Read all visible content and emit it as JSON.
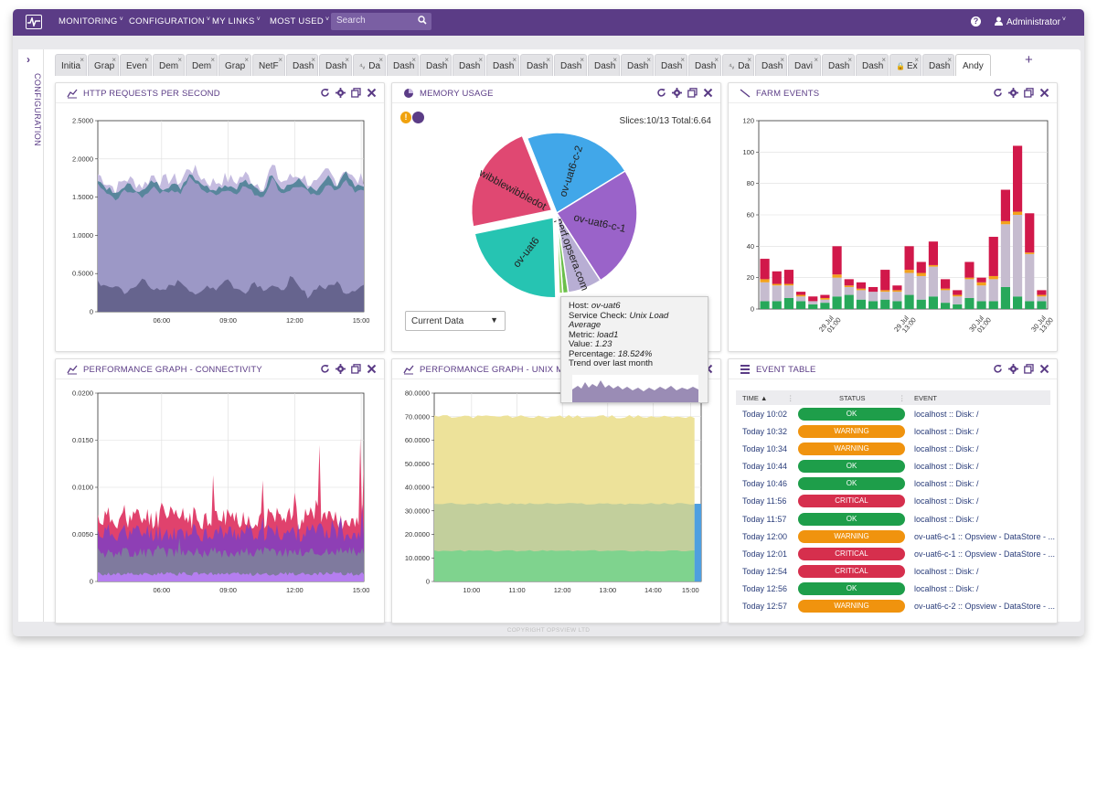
{
  "nav": {
    "items": [
      "MONITORING",
      "CONFIGURATION",
      "MY LINKS",
      "MOST USED"
    ],
    "search_placeholder": "Search",
    "user": "Administrator",
    "help": "?"
  },
  "sidebar": {
    "label": "CONFIGURATION"
  },
  "tabs": [
    "Initia",
    "Grap",
    "Even",
    "Dem",
    "Dem",
    "Grap",
    "NetF",
    "Dash",
    "Dash",
    "Da",
    "Dash",
    "Dash",
    "Dash",
    "Dash",
    "Dash",
    "Dash",
    "Dash",
    "Dash",
    "Dash",
    "Dash",
    "Da",
    "Dash",
    "Davi",
    "Dash",
    "Dash",
    "Ex",
    "Dash",
    "Andy"
  ],
  "panels": {
    "http": {
      "title": "HTTP REQUESTS PER SECOND"
    },
    "memory": {
      "title": "MEMORY USAGE",
      "summary": "Slices:10/13 Total:6.64",
      "dropdown": "Current Data"
    },
    "farm": {
      "title": "FARM EVENTS"
    },
    "conn": {
      "title": "PERFORMANCE GRAPH - CONNECTIVITY"
    },
    "unix": {
      "title": "PERFORMANCE GRAPH - UNIX MEI"
    },
    "events": {
      "title": "EVENT TABLE"
    }
  },
  "tooltip": {
    "host_label": "Host:",
    "host": "ov-uat6",
    "check_label": "Service Check:",
    "check": "Unix Load Average",
    "metric_label": "Metric:",
    "metric": "load1",
    "value_label": "Value:",
    "value": "1.23",
    "pct_label": "Percentage:",
    "pct": "18.524%",
    "trend": "Trend over last month"
  },
  "event_table": {
    "headers": [
      "TIME ▲",
      "STATUS",
      "EVENT"
    ],
    "rows": [
      {
        "time": "Today 10:02",
        "status": "OK",
        "event": "localhost :: Disk: /"
      },
      {
        "time": "Today 10:32",
        "status": "WARNING",
        "event": "localhost :: Disk: /"
      },
      {
        "time": "Today 10:34",
        "status": "WARNING",
        "event": "localhost :: Disk: /"
      },
      {
        "time": "Today 10:44",
        "status": "OK",
        "event": "localhost :: Disk: /"
      },
      {
        "time": "Today 10:46",
        "status": "OK",
        "event": "localhost :: Disk: /"
      },
      {
        "time": "Today 11:56",
        "status": "CRITICAL",
        "event": "localhost :: Disk: /"
      },
      {
        "time": "Today 11:57",
        "status": "OK",
        "event": "localhost :: Disk: /"
      },
      {
        "time": "Today 12:00",
        "status": "WARNING",
        "event": "ov-uat6-c-1 :: Opsview - DataStore - ..."
      },
      {
        "time": "Today 12:01",
        "status": "CRITICAL",
        "event": "ov-uat6-c-1 :: Opsview - DataStore - ..."
      },
      {
        "time": "Today 12:54",
        "status": "CRITICAL",
        "event": "localhost :: Disk: /"
      },
      {
        "time": "Today 12:56",
        "status": "OK",
        "event": "localhost :: Disk: /"
      },
      {
        "time": "Today 12:57",
        "status": "WARNING",
        "event": "ov-uat6-c-2 :: Opsview - DataStore - ..."
      }
    ]
  },
  "status_colors": {
    "OK": "#1e9e4a",
    "WARNING": "#f0930e",
    "CRITICAL": "#d62f4d"
  },
  "copyright": "COPYRIGHT OPSVIEW LTD",
  "chart_data": [
    {
      "name": "http",
      "type": "area",
      "ylim": [
        0,
        2.5
      ],
      "y_ticks": [
        "0",
        "0.5000",
        "1.0000",
        "1.5000",
        "2.0000",
        "2.5000"
      ],
      "x_ticks": [
        "06:00",
        "09:00",
        "12:00",
        "15:00"
      ],
      "series": [
        {
          "values": [
            1.8,
            1.7,
            1.6,
            1.75,
            1.7,
            1.65,
            1.8,
            1.7,
            1.75,
            1.7,
            1.9,
            1.8,
            1.7,
            1.7,
            1.75,
            1.7,
            1.8,
            1.7,
            1.65,
            1.9,
            1.7,
            1.75,
            1.8,
            1.7,
            1.65,
            1.85,
            1.7,
            1.9,
            1.7,
            1.75
          ]
        },
        {
          "values": [
            0.4,
            0.3,
            0.35,
            0.25,
            0.3,
            0.45,
            0.3,
            0.25,
            0.35,
            0.4,
            0.3,
            0.2,
            0.35,
            0.3,
            0.45,
            0.3,
            0.25,
            0.4,
            0.3,
            0.35,
            0.25,
            0.45,
            0.3,
            0.2,
            0.35,
            0.3,
            0.4,
            0.25,
            0.3,
            0.35
          ]
        }
      ]
    },
    {
      "name": "memory",
      "type": "pie",
      "slices": [
        {
          "label": "ov-uat6-c-2",
          "value": 1.23
        },
        {
          "label": "ov-uat6-c-1",
          "value": 1.36
        },
        {
          "label": "perf.opsera.com",
          "value": 0.38
        },
        {
          "label": "ov-uat6",
          "value": 1.23
        },
        {
          "label": "wibblewibbledot",
          "value": 1.23
        }
      ]
    },
    {
      "name": "farm",
      "type": "bar",
      "ylim": [
        0,
        120
      ],
      "y_ticks": [
        "0",
        "20",
        "40",
        "60",
        "80",
        "100",
        "120"
      ],
      "x_ticks": [
        "29 Jul\n01:00",
        "29 Jul\n13:00",
        "30 Jul\n01:00",
        "30 Jul\n13:00"
      ],
      "green": [
        5,
        5,
        7,
        5,
        3,
        4,
        8,
        9,
        6,
        5,
        6,
        5,
        9,
        6,
        8,
        4,
        3,
        7,
        5,
        5,
        14,
        8,
        5,
        5
      ],
      "grey": [
        12,
        10,
        8,
        3,
        2,
        2,
        12,
        5,
        6,
        6,
        5,
        6,
        14,
        15,
        19,
        8,
        5,
        12,
        10,
        14,
        40,
        52,
        30,
        3
      ],
      "orange": [
        2,
        1,
        1,
        1,
        0,
        1,
        2,
        1,
        1,
        0,
        1,
        1,
        2,
        2,
        1,
        1,
        1,
        1,
        2,
        2,
        2,
        2,
        1,
        1
      ],
      "red": [
        13,
        8,
        9,
        2,
        3,
        2,
        18,
        4,
        4,
        3,
        13,
        3,
        15,
        7,
        15,
        6,
        3,
        10,
        3,
        25,
        20,
        42,
        25,
        3
      ]
    },
    {
      "name": "connectivity",
      "type": "area",
      "ylim": [
        0,
        0.02
      ],
      "y_ticks": [
        "0",
        "0.0050",
        "0.0100",
        "0.0150",
        "0.0200"
      ],
      "x_ticks": [
        "06:00",
        "09:00",
        "12:00",
        "15:00"
      ]
    },
    {
      "name": "unix",
      "type": "area",
      "ylim": [
        0,
        80
      ],
      "y_ticks": [
        "0",
        "10.0000",
        "20.0000",
        "30.0000",
        "40.0000",
        "50.0000",
        "60.0000",
        "70.0000",
        "80.0000"
      ],
      "x_ticks": [
        "10:00",
        "11:00",
        "12:00",
        "13:00",
        "14:00",
        "15:00"
      ],
      "series": [
        {
          "values": [
            70,
            70
          ]
        },
        {
          "values": [
            33,
            33
          ]
        },
        {
          "values": [
            13,
            13
          ]
        }
      ]
    }
  ]
}
